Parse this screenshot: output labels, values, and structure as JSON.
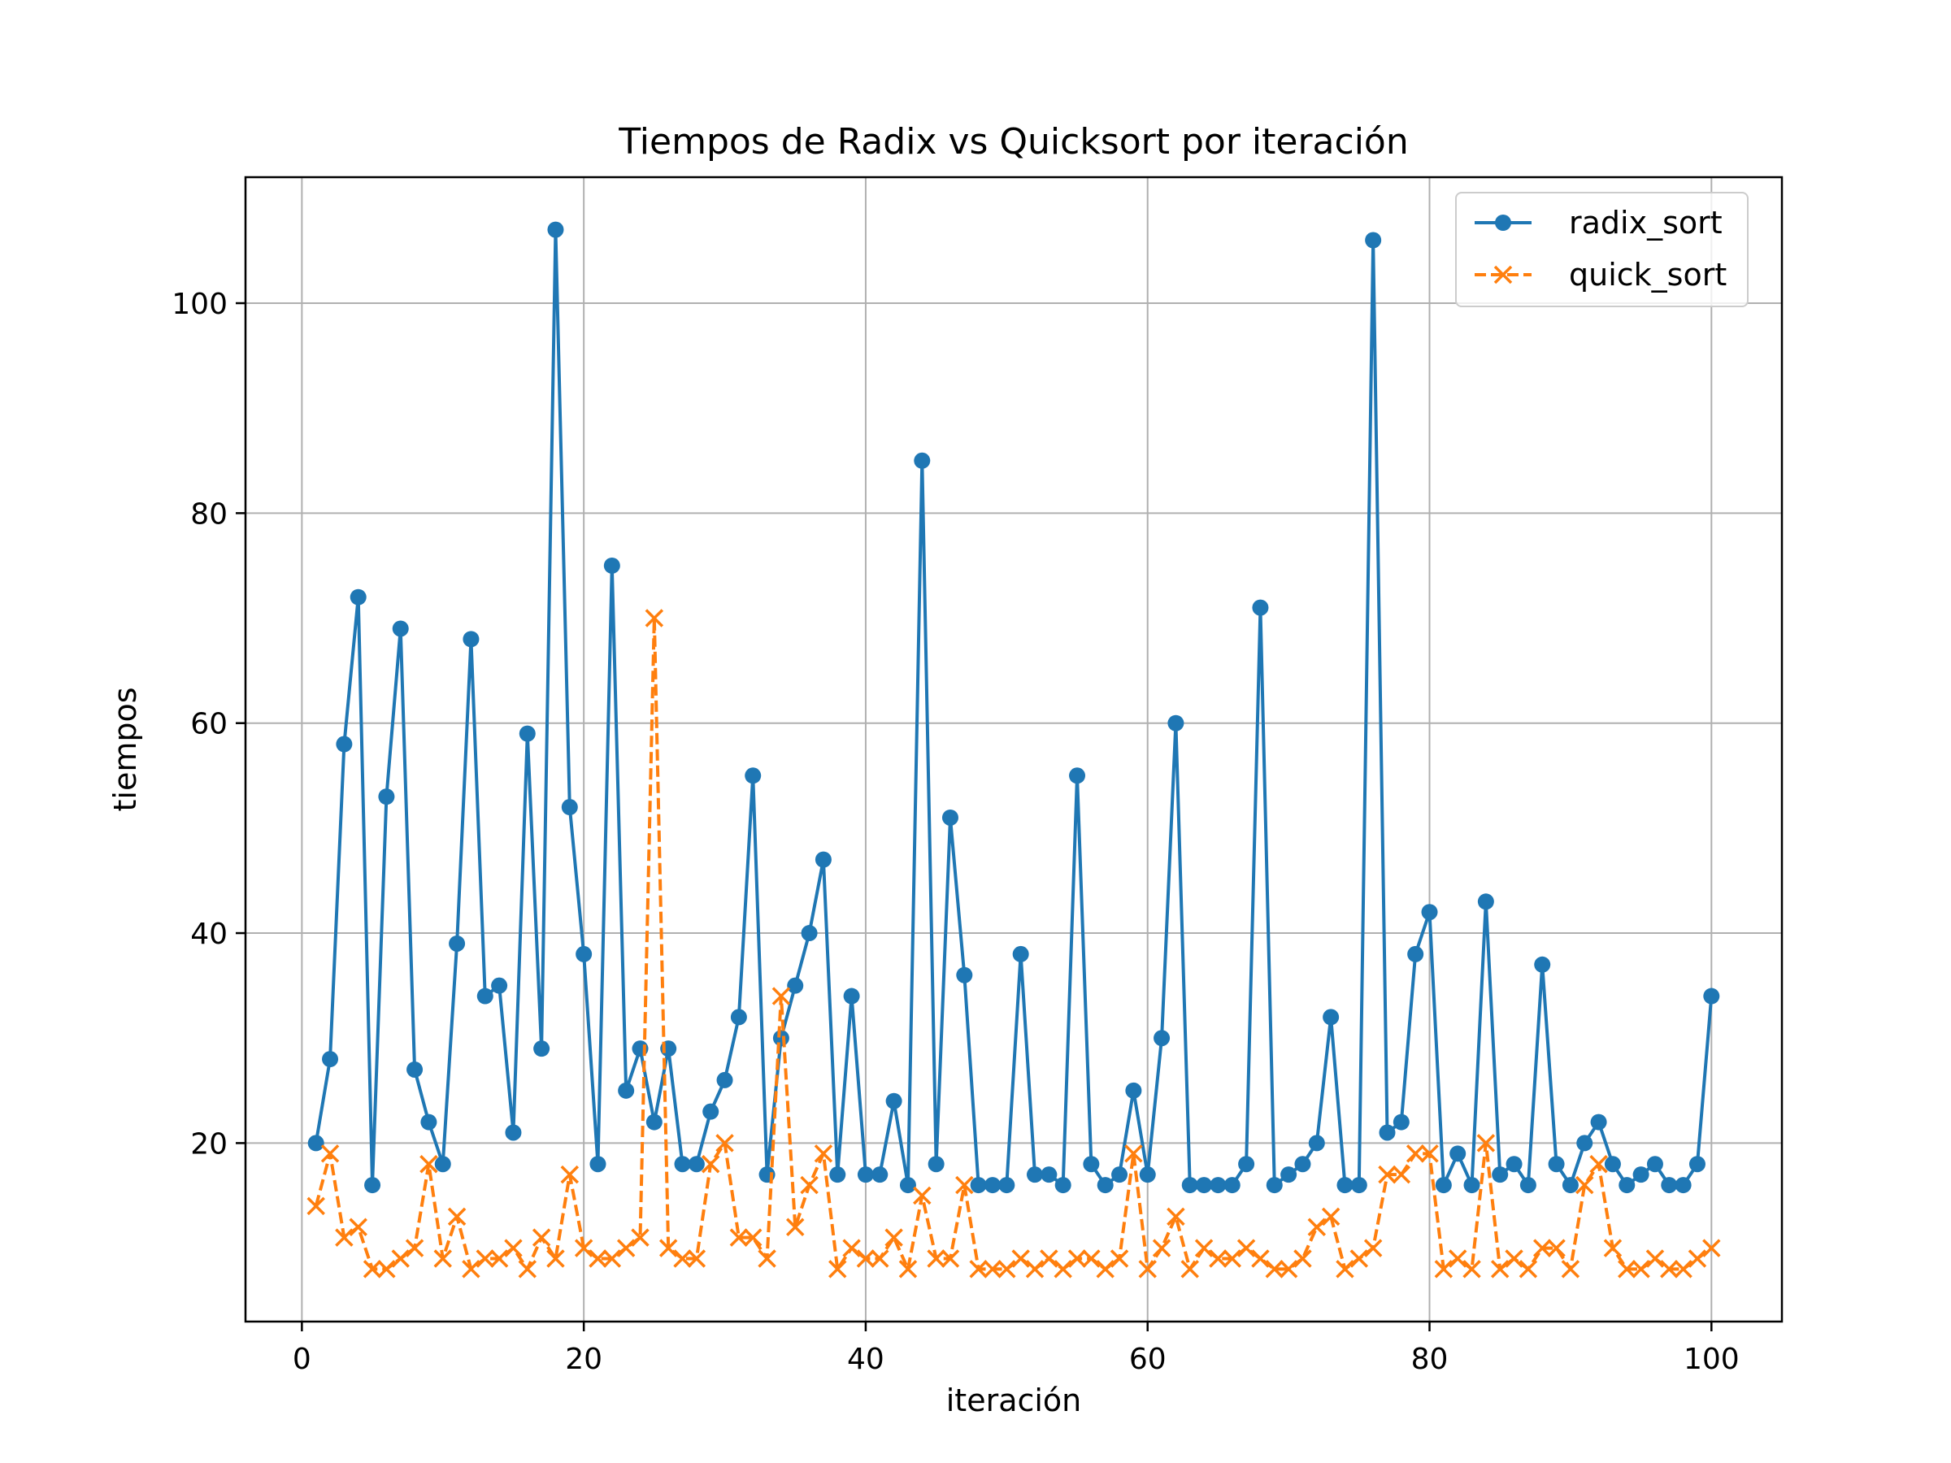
{
  "chart_data": {
    "type": "line",
    "title": "Tiempos de Radix vs Quicksort por iteración",
    "xlabel": "iteración",
    "ylabel": "tiempos",
    "xlim": [
      -4,
      105
    ],
    "ylim": [
      3,
      112
    ],
    "grid": true,
    "legend_position": "top-right",
    "x_ticks": [
      0,
      20,
      40,
      60,
      80,
      100
    ],
    "y_ticks": [
      20,
      40,
      60,
      80,
      100
    ],
    "x": [
      1,
      2,
      3,
      4,
      5,
      6,
      7,
      8,
      9,
      10,
      11,
      12,
      13,
      14,
      15,
      16,
      17,
      18,
      19,
      20,
      21,
      22,
      23,
      24,
      25,
      26,
      27,
      28,
      29,
      30,
      31,
      32,
      33,
      34,
      35,
      36,
      37,
      38,
      39,
      40,
      41,
      42,
      43,
      44,
      45,
      46,
      47,
      48,
      49,
      50,
      51,
      52,
      53,
      54,
      55,
      56,
      57,
      58,
      59,
      60,
      61,
      62,
      63,
      64,
      65,
      66,
      67,
      68,
      69,
      70,
      71,
      72,
      73,
      74,
      75,
      76,
      77,
      78,
      79,
      80,
      81,
      82,
      83,
      84,
      85,
      86,
      87,
      88,
      89,
      90,
      91,
      92,
      93,
      94,
      95,
      96,
      97,
      98,
      99,
      100
    ],
    "series": [
      {
        "name": "radix_sort",
        "color": "#1f77b4",
        "marker": "circle",
        "line_style": "solid",
        "values": [
          20,
          28,
          58,
          72,
          16,
          53,
          69,
          27,
          22,
          18,
          39,
          68,
          34,
          35,
          21,
          59,
          29,
          107,
          52,
          38,
          18,
          75,
          25,
          29,
          22,
          29,
          18,
          18,
          23,
          26,
          32,
          55,
          17,
          30,
          35,
          40,
          47,
          17,
          34,
          17,
          17,
          24,
          16,
          85,
          18,
          51,
          36,
          16,
          16,
          16,
          38,
          17,
          17,
          16,
          55,
          18,
          16,
          17,
          25,
          17,
          30,
          60,
          16,
          16,
          16,
          16,
          18,
          71,
          16,
          17,
          18,
          20,
          32,
          16,
          16,
          106,
          21,
          22,
          38,
          42,
          16,
          19,
          16,
          43,
          17,
          18,
          16,
          37,
          18,
          16,
          20,
          22,
          18,
          16,
          17,
          18,
          16,
          16,
          18,
          34
        ]
      },
      {
        "name": "quick_sort",
        "color": "#ff7f0e",
        "marker": "x",
        "line_style": "dashed",
        "values": [
          14,
          19,
          11,
          12,
          8,
          8,
          9,
          10,
          18,
          9,
          13,
          8,
          9,
          9,
          10,
          8,
          11,
          9,
          17,
          10,
          9,
          9,
          10,
          11,
          70,
          10,
          9,
          9,
          18,
          20,
          11,
          11,
          9,
          34,
          12,
          16,
          19,
          8,
          10,
          9,
          9,
          11,
          8,
          15,
          9,
          9,
          16,
          8,
          8,
          8,
          9,
          8,
          9,
          8,
          9,
          9,
          8,
          9,
          19,
          8,
          10,
          13,
          8,
          10,
          9,
          9,
          10,
          9,
          8,
          8,
          9,
          12,
          13,
          8,
          9,
          10,
          17,
          17,
          19,
          19,
          8,
          9,
          8,
          20,
          8,
          9,
          8,
          10,
          10,
          8,
          16,
          18,
          10,
          8,
          8,
          9,
          8,
          8,
          9,
          10
        ]
      }
    ]
  }
}
